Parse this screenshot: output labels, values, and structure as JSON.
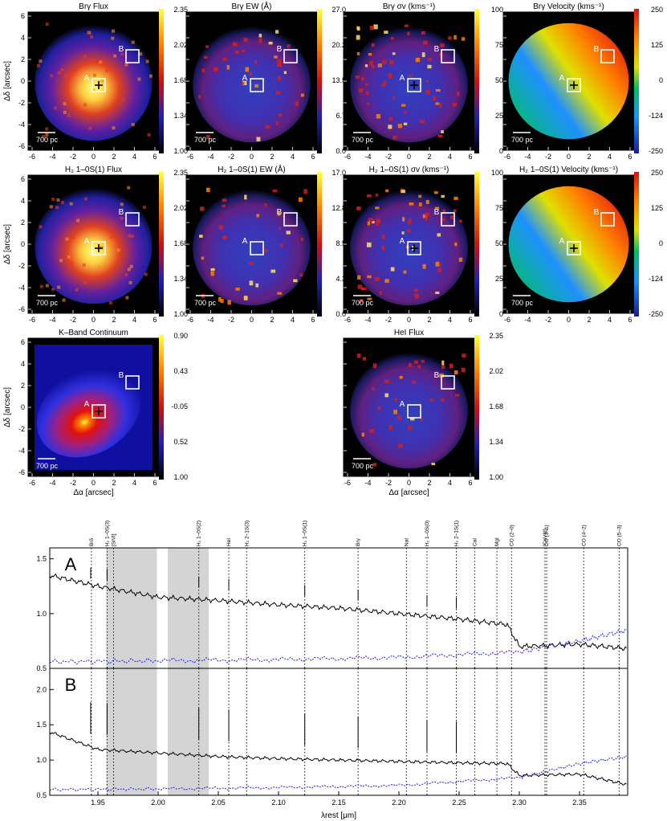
{
  "maps": {
    "titles": [
      "Brγ Flux",
      "Brγ EW (Å)",
      "Brγ σv (kms⁻¹)",
      "Brγ Velocity (kms⁻¹)",
      "H₂ 1–0S(1) Flux",
      "H₂ 1–0S(1) EW (Å)",
      "H₂ 1–0S(1) σv (kms⁻¹)",
      "H₂ 1–0S(1) Velocity (kms⁻¹)",
      "K–Band Continuum",
      "HeI Flux"
    ],
    "colorbars": [
      [
        "2.35",
        "2.02",
        "1.68",
        "1.34",
        "1.00"
      ],
      [
        "27.0",
        "20.2",
        "13.5",
        "6.7",
        "0.0"
      ],
      [
        "100",
        "75",
        "50",
        "25",
        "0"
      ],
      [
        "250",
        "125",
        "0",
        "-124",
        "-250"
      ],
      [
        "2.35",
        "2.02",
        "1.68",
        "1.34",
        "1.00"
      ],
      [
        "17.0",
        "12.8",
        "8.5",
        "4.3",
        "0.0"
      ],
      [
        "100",
        "75",
        "50",
        "25",
        "0"
      ],
      [
        "250",
        "125",
        "0",
        "-124",
        "-250"
      ],
      [
        "0.90",
        "0.43",
        "-0.05",
        "0.52",
        "1.00"
      ],
      [
        "2.35",
        "2.02",
        "1.68",
        "1.34",
        "1.00"
      ]
    ],
    "xticks": [
      "-6",
      "-4",
      "-2",
      "0",
      "2",
      "4",
      "6"
    ],
    "yticks": [
      "6",
      "4",
      "2",
      "0",
      "-2",
      "-4",
      "-6"
    ],
    "xlabel": "Δα [arcsec]",
    "ylabel": "Δδ [arcsec]",
    "scalebar": "700 pc",
    "box_a": "A",
    "box_b": "B"
  },
  "spectra": {
    "panel_a": "A",
    "panel_b": "B",
    "xlabel": "λrest [μm]",
    "xticks": [
      "1.95",
      "2.00",
      "2.05",
      "2.10",
      "2.15",
      "2.20",
      "2.25",
      "2.30",
      "2.35"
    ],
    "yticks_a": [
      "1.5",
      "1.0",
      "0.5"
    ],
    "yticks_b": [
      "2.0",
      "1.5",
      "1.0",
      "0.5"
    ],
    "lines": [
      {
        "label": "Brδ",
        "wl": 1.9446
      },
      {
        "label": "H₂ 1–0S(3)",
        "wl": 1.9576
      },
      {
        "label": "[SiVI]",
        "wl": 1.963
      },
      {
        "label": "H₂ 1–0S(2)",
        "wl": 2.0338
      },
      {
        "label": "HeI",
        "wl": 2.0587
      },
      {
        "label": "H₂ 2–1S(3)",
        "wl": 2.0735
      },
      {
        "label": "H₂ 1–0S(1)",
        "wl": 2.1218
      },
      {
        "label": "Brγ",
        "wl": 2.1661
      },
      {
        "label": "NaI",
        "wl": 2.2062
      },
      {
        "label": "H₂ 1–0S(0)",
        "wl": 2.2233
      },
      {
        "label": "H₂ 2–1S(1)",
        "wl": 2.2477
      },
      {
        "label": "CaI",
        "wl": 2.2631
      },
      {
        "label": "MgI",
        "wl": 2.2814
      },
      {
        "label": "CO (2–0)",
        "wl": 2.2935
      },
      {
        "label": "[CaVIII]",
        "wl": 2.3213
      },
      {
        "label": "CO (3–1)",
        "wl": 2.3227
      },
      {
        "label": "CO (4–2)",
        "wl": 2.3535
      },
      {
        "label": "CO (5–3)",
        "wl": 2.3829
      }
    ]
  },
  "chart_data": {
    "type": "line",
    "xlabel": "λrest [μm]",
    "xlim": [
      1.91,
      2.39
    ],
    "panels": [
      {
        "label": "A",
        "ylim": [
          0.5,
          1.6
        ],
        "series": [
          {
            "x": [
              1.91,
              1.95,
              2.0,
              2.05,
              2.1,
              2.15,
              2.2,
              2.25,
              2.29,
              2.3,
              2.35,
              2.39
            ],
            "y": [
              1.35,
              1.25,
              1.15,
              1.12,
              1.08,
              1.05,
              1.0,
              0.95,
              0.9,
              0.7,
              0.72,
              0.68
            ]
          },
          {
            "x": [
              1.91,
              2.0,
              2.1,
              2.2,
              2.3,
              2.35,
              2.39
            ],
            "y": [
              0.56,
              0.57,
              0.58,
              0.6,
              0.65,
              0.75,
              0.85
            ]
          }
        ]
      },
      {
        "label": "B",
        "ylim": [
          0.5,
          2.3
        ],
        "series": [
          {
            "x": [
              1.91,
              1.95,
              2.0,
              2.05,
              2.1,
              2.15,
              2.2,
              2.25,
              2.29,
              2.3,
              2.35,
              2.39
            ],
            "y": [
              1.4,
              1.15,
              1.1,
              1.05,
              1.02,
              1.0,
              0.98,
              0.96,
              0.95,
              0.78,
              0.8,
              0.65
            ]
          },
          {
            "x": [
              1.91,
              2.0,
              2.1,
              2.2,
              2.3,
              2.35,
              2.39
            ],
            "y": [
              0.58,
              0.59,
              0.61,
              0.64,
              0.75,
              0.95,
              1.05
            ]
          }
        ]
      }
    ]
  }
}
